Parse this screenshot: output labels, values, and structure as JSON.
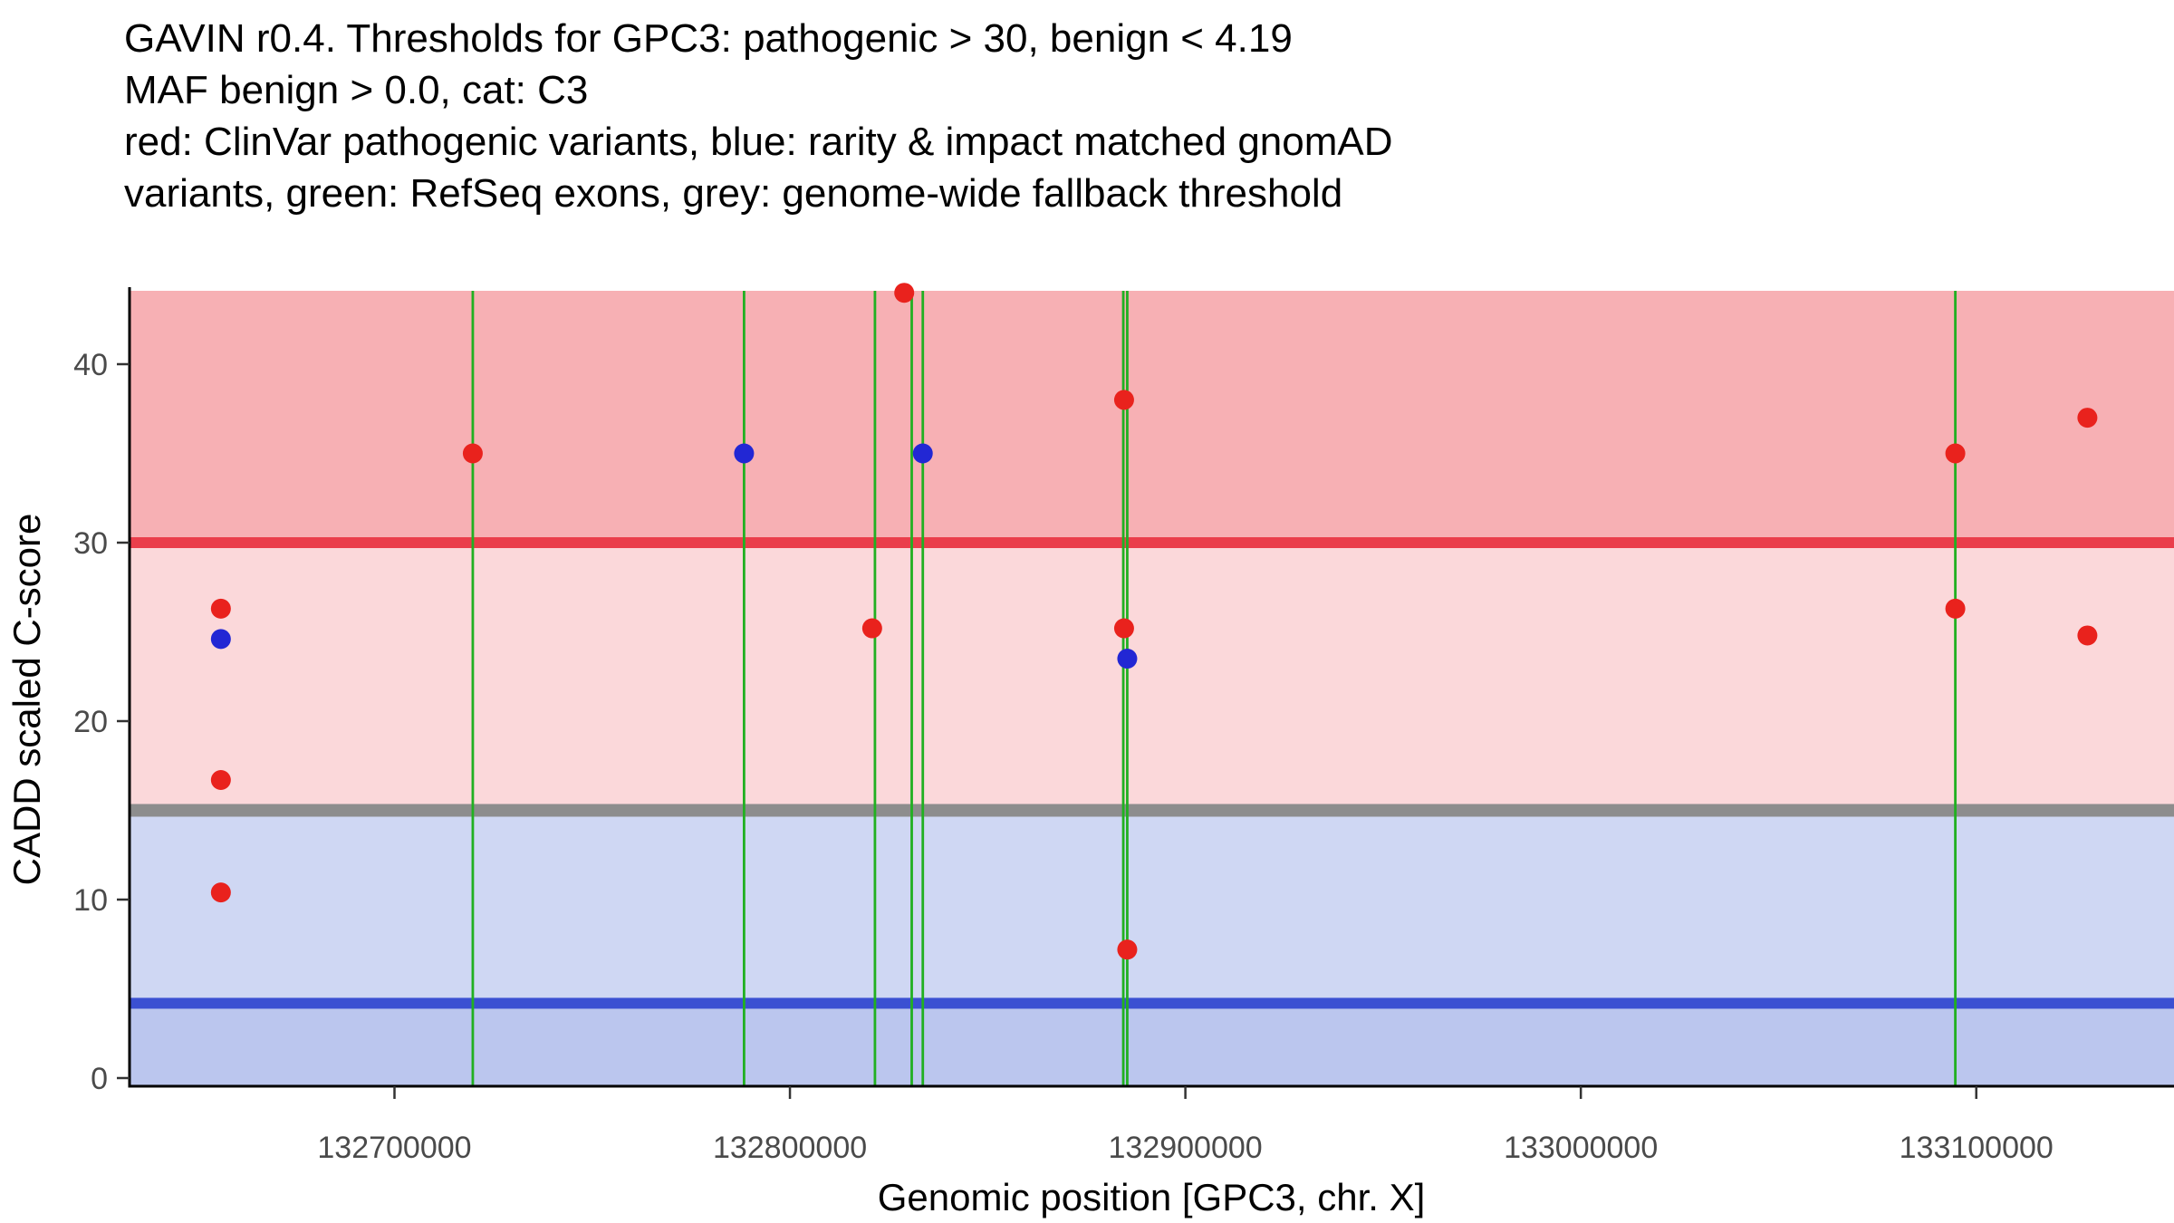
{
  "chart_data": {
    "type": "scatter",
    "title_lines": [
      "GAVIN r0.4. Thresholds for GPC3: pathogenic > 30, benign < 4.19",
      "MAF benign > 0.0, cat: C3",
      "red: ClinVar pathogenic variants, blue: rarity & impact matched gnomAD",
      "variants, green: RefSeq exons, grey: genome-wide fallback threshold"
    ],
    "xlabel": "Genomic position [GPC3, chr. X]",
    "ylabel": "CADD scaled C-score",
    "x_domain": [
      132633000,
      133150000
    ],
    "y_domain": [
      0,
      44.1
    ],
    "x_ticks": [
      132700000,
      132800000,
      132900000,
      133000000,
      133100000
    ],
    "y_ticks": [
      0,
      10,
      20,
      30,
      40
    ],
    "thresholds": {
      "pathogenic": 30,
      "benign": 4.19,
      "genome_wide_fallback": 15
    },
    "exon_positions": [
      132719800,
      132788400,
      132821500,
      132830800,
      132833600,
      132884300,
      132885300,
      133094700
    ],
    "series": [
      {
        "name": "ClinVar pathogenic variants",
        "color": "#e9221d",
        "points": [
          [
            132656100,
            26.3
          ],
          [
            132656100,
            16.7
          ],
          [
            132656100,
            10.4
          ],
          [
            132719800,
            35.0
          ],
          [
            132820800,
            25.2
          ],
          [
            132828900,
            44.0
          ],
          [
            132884500,
            38.0
          ],
          [
            132884500,
            25.2
          ],
          [
            132885300,
            7.2
          ],
          [
            133094700,
            35.0
          ],
          [
            133094700,
            26.3
          ],
          [
            133128100,
            37.0
          ],
          [
            133128100,
            24.8
          ]
        ]
      },
      {
        "name": "rarity & impact matched gnomAD variants",
        "color": "#2227d4",
        "points": [
          [
            132656100,
            24.6
          ],
          [
            132788400,
            35.0
          ],
          [
            132833600,
            35.0
          ],
          [
            132885300,
            23.5
          ]
        ]
      }
    ],
    "colors": {
      "band_pathogenic": "#f7b0b4",
      "band_uncertain_red": "#fbd8da",
      "band_uncertain_blue": "#cfd7f3",
      "band_benign": "#bbc6ee",
      "line_pathogenic": "#ea3e4b",
      "line_fallback": "#8d8d8d",
      "line_benign": "#3b50d2",
      "exon_line": "#21b021",
      "axis_line": "#000000",
      "tick_label": "#4a4a4a"
    },
    "legend_position": "none",
    "grid": false
  }
}
